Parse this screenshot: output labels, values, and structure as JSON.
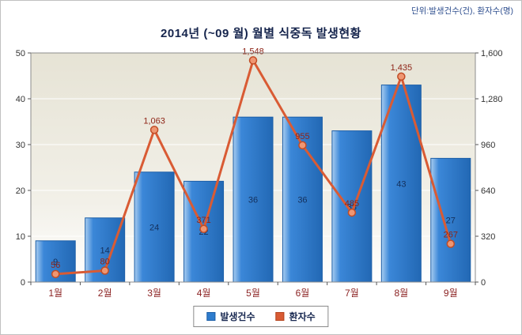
{
  "meta": {
    "unit_label": "단위:발생건수(건), 환자수(명)"
  },
  "title": "2014년 (~09 월) 월별 식중독 발생현황",
  "legend": [
    {
      "label": "발생건수",
      "color": "#2e7ccd",
      "border": "#1d5fa8"
    },
    {
      "label": "환자수",
      "color": "#d95b34",
      "border": "#b4441f"
    }
  ],
  "colors": {
    "bar_fill_light": "#a9cdf0",
    "bar_fill_mid": "#3b87d8",
    "bar_fill_dark": "#2268b4",
    "bar_border": "#1d5fa8",
    "bar_label": "#14305c",
    "line": "#d95b34",
    "marker_fill": "#ef9672",
    "marker_border": "#c04c26",
    "line_label": "#8e2416",
    "month_label": "#8b2222",
    "axis_label": "#333333",
    "plot_bg_top": "#e6e3d5",
    "plot_bg_bottom": "#ffffff",
    "plot_border": "#8c8c8c",
    "grid": "#ffffff",
    "title": "#16254d",
    "unit": "#2f4f8f"
  },
  "chart_data": {
    "type": "bar",
    "subtype": "bar-line-combo",
    "title": "2014년 (~09 월) 월별 식중독 발생현황",
    "categories": [
      "1월",
      "2월",
      "3월",
      "4월",
      "5월",
      "6월",
      "7월",
      "8월",
      "9월"
    ],
    "series": [
      {
        "name": "발생건수",
        "type": "bar",
        "axis": "left",
        "values": [
          9,
          14,
          24,
          22,
          36,
          36,
          33,
          43,
          27
        ],
        "labels": [
          "9",
          "14",
          "24",
          "22",
          "36",
          "36",
          "33",
          "43",
          "27"
        ]
      },
      {
        "name": "환자수",
        "type": "line",
        "axis": "right",
        "values": [
          56,
          80,
          1063,
          371,
          1548,
          955,
          485,
          1435,
          267
        ],
        "labels": [
          "56",
          "80",
          "1,063",
          "371",
          "1,548",
          "955",
          "485",
          "1,435",
          "267"
        ]
      }
    ],
    "left_axis": {
      "min": 0,
      "max": 50,
      "ticks": [
        0,
        10,
        20,
        30,
        40,
        50
      ]
    },
    "right_axis": {
      "min": 0,
      "max": 1600,
      "ticks": [
        0,
        320,
        640,
        960,
        1280,
        1600
      ],
      "tick_labels": [
        "0",
        "320",
        "640",
        "960",
        "1,280",
        "1,600"
      ]
    },
    "grid": true,
    "legend_position": "bottom"
  }
}
